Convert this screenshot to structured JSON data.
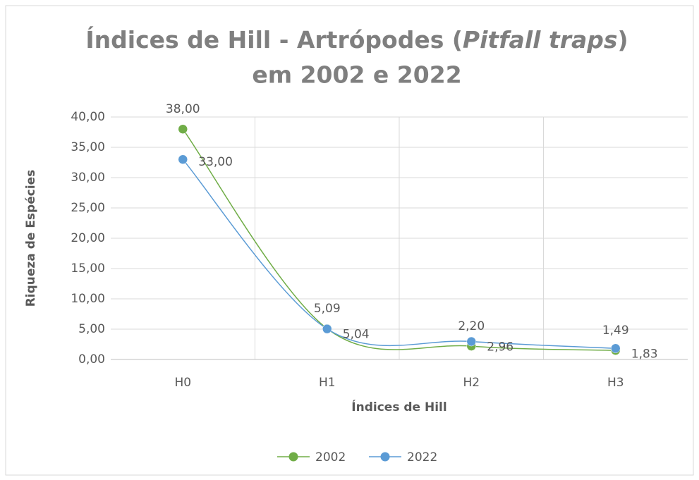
{
  "chart_data": {
    "type": "line",
    "title": [
      "Índices de Hill - Artrópodes (",
      "Pitfall traps",
      ")",
      "em 2002 e 2022"
    ],
    "x_label": "Índices de Hill",
    "y_label": "Riqueza de Espécies",
    "categories": [
      "H0",
      "H1",
      "H2",
      "H3"
    ],
    "series": [
      {
        "name": "2002",
        "color": "#70ad47",
        "values": [
          38,
          5.09,
          2.2,
          1.49
        ],
        "value_labels": [
          "38,00",
          "5,09",
          "2,20",
          "1,49"
        ]
      },
      {
        "name": "2022",
        "color": "#5b9bd5",
        "values": [
          33,
          5.04,
          2.96,
          1.83
        ],
        "value_labels": [
          "33,00",
          "5,04",
          "2,96",
          "1,83"
        ]
      }
    ],
    "ylim": [
      0,
      40
    ],
    "yticks": [
      {
        "value": 0,
        "label": "0,00"
      },
      {
        "value": 5,
        "label": "5,00"
      },
      {
        "value": 10,
        "label": "10,00"
      },
      {
        "value": 15,
        "label": "15,00"
      },
      {
        "value": 20,
        "label": "20,00"
      },
      {
        "value": 25,
        "label": "25,00"
      },
      {
        "value": 30,
        "label": "30,00"
      },
      {
        "value": 35,
        "label": "35,00"
      },
      {
        "value": 40,
        "label": "40,00"
      }
    ],
    "grid": true,
    "smooth": true,
    "legend": "bottom"
  }
}
